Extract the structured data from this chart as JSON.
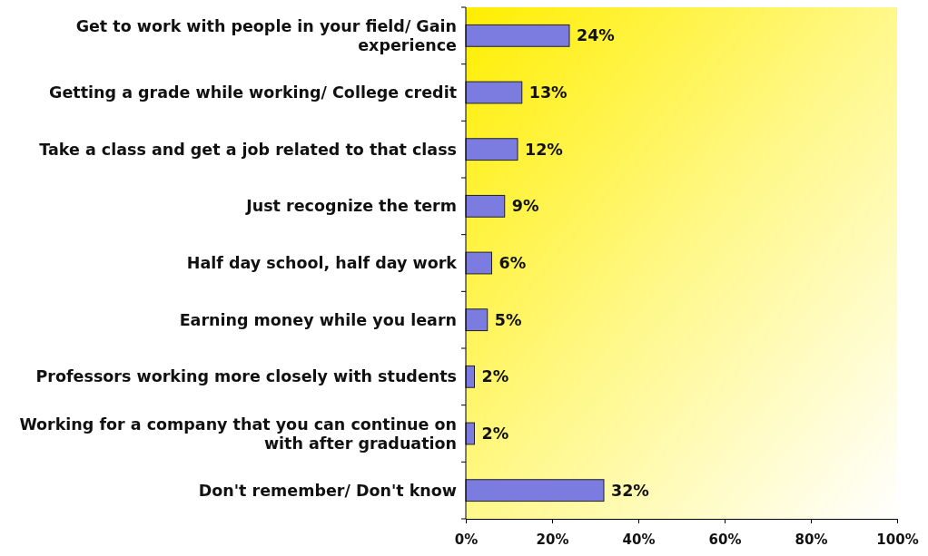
{
  "chart_data": {
    "type": "bar",
    "orientation": "horizontal",
    "categories": [
      "Get to work with people in your field/ Gain experience",
      "Getting a grade while working/ College credit",
      "Take a class and get a job related to that class",
      "Just recognize the term",
      "Half day school, half day work",
      "Earning money while you learn",
      "Professors working more closely with students",
      "Working for a company that you can continue on with after graduation",
      "Don't remember/ Don't know"
    ],
    "values": [
      24,
      13,
      12,
      9,
      6,
      5,
      2,
      2,
      32
    ],
    "value_labels": [
      "24%",
      "13%",
      "12%",
      "9%",
      "6%",
      "5%",
      "2%",
      "2%",
      "32%"
    ],
    "color": "#7b7be0",
    "xlim": [
      0,
      100
    ],
    "xticks": [
      {
        "value": 0,
        "label": "0%"
      },
      {
        "value": 20,
        "label": "20%"
      },
      {
        "value": 40,
        "label": "40%"
      },
      {
        "value": 60,
        "label": "60%"
      },
      {
        "value": 80,
        "label": "80%"
      },
      {
        "value": 100,
        "label": "100%"
      }
    ],
    "grid": false
  }
}
